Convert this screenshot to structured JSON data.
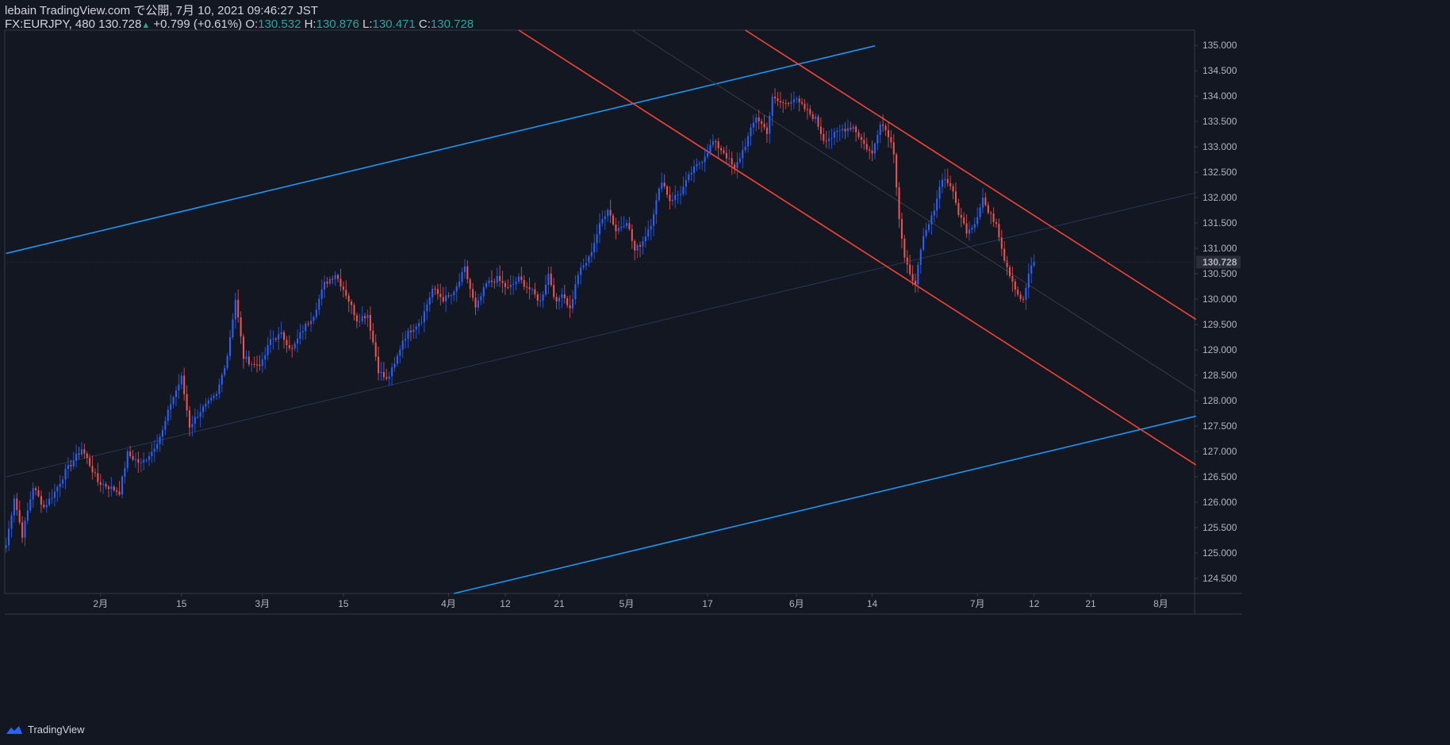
{
  "header": {
    "line1": "lebain TradingView.com で公開, 7月 10, 2021 09:46:27 JST",
    "symbol": "FX:EURJPY, 480",
    "last": "130.728",
    "change": "+0.799 (+0.61%)",
    "o_label": "O:",
    "o_value": "130.532",
    "h_label": "H:",
    "h_value": "130.876",
    "l_label": "L:",
    "l_value": "130.471",
    "c_label": "C:",
    "c_value": "130.728"
  },
  "footer": {
    "brand": "TradingView"
  },
  "colors": {
    "bg": "#131722",
    "up": "#2962ff",
    "down": "#ef5350",
    "channel_up": "#2196f3",
    "channel_down": "#f44336",
    "text": "#b2b5be"
  },
  "chart_data": {
    "type": "candlestick",
    "timeframe": "480",
    "symbol": "FX:EURJPY",
    "ylim": [
      124.2,
      135.3
    ],
    "y_ticks": [
      "135.000",
      "134.500",
      "134.000",
      "133.500",
      "133.000",
      "132.500",
      "132.000",
      "131.500",
      "131.000",
      "130.500",
      "130.000",
      "129.500",
      "129.000",
      "128.500",
      "128.000",
      "127.500",
      "127.000",
      "126.500",
      "126.000",
      "125.500",
      "125.000",
      "124.500"
    ],
    "current_price_label": "130.728",
    "x_ticks": [
      {
        "label": "2月",
        "bar": 35
      },
      {
        "label": "15",
        "bar": 65
      },
      {
        "label": "3月",
        "bar": 95
      },
      {
        "label": "15",
        "bar": 125
      },
      {
        "label": "4月",
        "bar": 164
      },
      {
        "label": "12",
        "bar": 185
      },
      {
        "label": "21",
        "bar": 205
      },
      {
        "label": "5月",
        "bar": 230
      },
      {
        "label": "17",
        "bar": 260
      },
      {
        "label": "6月",
        "bar": 293
      },
      {
        "label": "14",
        "bar": 321
      },
      {
        "label": "7月",
        "bar": 360
      },
      {
        "label": "12",
        "bar": 381
      },
      {
        "label": "21",
        "bar": 402
      },
      {
        "label": "8月",
        "bar": 428
      }
    ],
    "anchors": [
      [
        0,
        125.15
      ],
      [
        3,
        126.1
      ],
      [
        6,
        125.35
      ],
      [
        10,
        126.3
      ],
      [
        14,
        125.9
      ],
      [
        18,
        126.2
      ],
      [
        22,
        126.6
      ],
      [
        28,
        127.05
      ],
      [
        30,
        126.85
      ],
      [
        34,
        126.4
      ],
      [
        38,
        126.3
      ],
      [
        42,
        126.2
      ],
      [
        45,
        126.95
      ],
      [
        50,
        126.75
      ],
      [
        54,
        127.0
      ],
      [
        58,
        127.4
      ],
      [
        61,
        127.95
      ],
      [
        65,
        128.45
      ],
      [
        68,
        127.5
      ],
      [
        72,
        127.8
      ],
      [
        78,
        128.1
      ],
      [
        82,
        128.9
      ],
      [
        85,
        130.0
      ],
      [
        88,
        128.85
      ],
      [
        92,
        128.7
      ],
      [
        95,
        128.75
      ],
      [
        98,
        129.2
      ],
      [
        102,
        129.3
      ],
      [
        106,
        129.0
      ],
      [
        110,
        129.4
      ],
      [
        114,
        129.7
      ],
      [
        118,
        130.3
      ],
      [
        122,
        130.5
      ],
      [
        126,
        130.1
      ],
      [
        130,
        129.6
      ],
      [
        134,
        129.7
      ],
      [
        138,
        128.6
      ],
      [
        141,
        128.4
      ],
      [
        144,
        128.7
      ],
      [
        147,
        129.2
      ],
      [
        150,
        129.4
      ],
      [
        154,
        129.6
      ],
      [
        158,
        130.2
      ],
      [
        162,
        130.0
      ],
      [
        166,
        130.1
      ],
      [
        170,
        130.6
      ],
      [
        174,
        129.8
      ],
      [
        178,
        130.3
      ],
      [
        182,
        130.4
      ],
      [
        186,
        130.2
      ],
      [
        190,
        130.4
      ],
      [
        194,
        130.2
      ],
      [
        198,
        129.95
      ],
      [
        201,
        130.5
      ],
      [
        204,
        129.9
      ],
      [
        206,
        130.15
      ],
      [
        209,
        129.8
      ],
      [
        212,
        130.5
      ],
      [
        216,
        130.8
      ],
      [
        220,
        131.45
      ],
      [
        223,
        131.8
      ],
      [
        226,
        131.35
      ],
      [
        230,
        131.55
      ],
      [
        233,
        130.95
      ],
      [
        236,
        131.15
      ],
      [
        239,
        131.5
      ],
      [
        243,
        132.35
      ],
      [
        246,
        131.95
      ],
      [
        250,
        132.1
      ],
      [
        254,
        132.5
      ],
      [
        258,
        132.75
      ],
      [
        262,
        133.1
      ],
      [
        266,
        132.9
      ],
      [
        270,
        132.55
      ],
      [
        274,
        133.05
      ],
      [
        278,
        133.6
      ],
      [
        282,
        133.3
      ],
      [
        284,
        133.95
      ],
      [
        288,
        133.85
      ],
      [
        292,
        133.95
      ],
      [
        296,
        133.75
      ],
      [
        300,
        133.55
      ],
      [
        303,
        133.15
      ],
      [
        306,
        133.2
      ],
      [
        310,
        133.35
      ],
      [
        314,
        133.4
      ],
      [
        318,
        133.05
      ],
      [
        321,
        132.85
      ],
      [
        324,
        133.5
      ],
      [
        327,
        133.25
      ],
      [
        329,
        132.9
      ],
      [
        331,
        131.6
      ],
      [
        333,
        130.8
      ],
      [
        335,
        130.45
      ],
      [
        337,
        130.35
      ],
      [
        340,
        131.2
      ],
      [
        343,
        131.6
      ],
      [
        347,
        132.4
      ],
      [
        350,
        132.25
      ],
      [
        353,
        131.7
      ],
      [
        356,
        131.35
      ],
      [
        359,
        131.5
      ],
      [
        362,
        132.0
      ],
      [
        364,
        131.7
      ],
      [
        367,
        131.5
      ],
      [
        370,
        130.8
      ],
      [
        372,
        130.5
      ],
      [
        375,
        130.1
      ],
      [
        377,
        129.95
      ],
      [
        379,
        130.5
      ],
      [
        381,
        130.728
      ]
    ],
    "total_bars": 441,
    "channels": [
      {
        "name": "ascending-channel",
        "color": "#2196f3",
        "p1": [
          0,
          130.9
        ],
        "p2": [
          441,
          128.0
        ],
        "slope_ref": [
          0,
          130.9,
          322,
          134.99
        ],
        "parallel_offset_ref": [
          166,
          124.2
        ]
      },
      {
        "name": "descending-channel",
        "color": "#f44336"
      }
    ]
  }
}
